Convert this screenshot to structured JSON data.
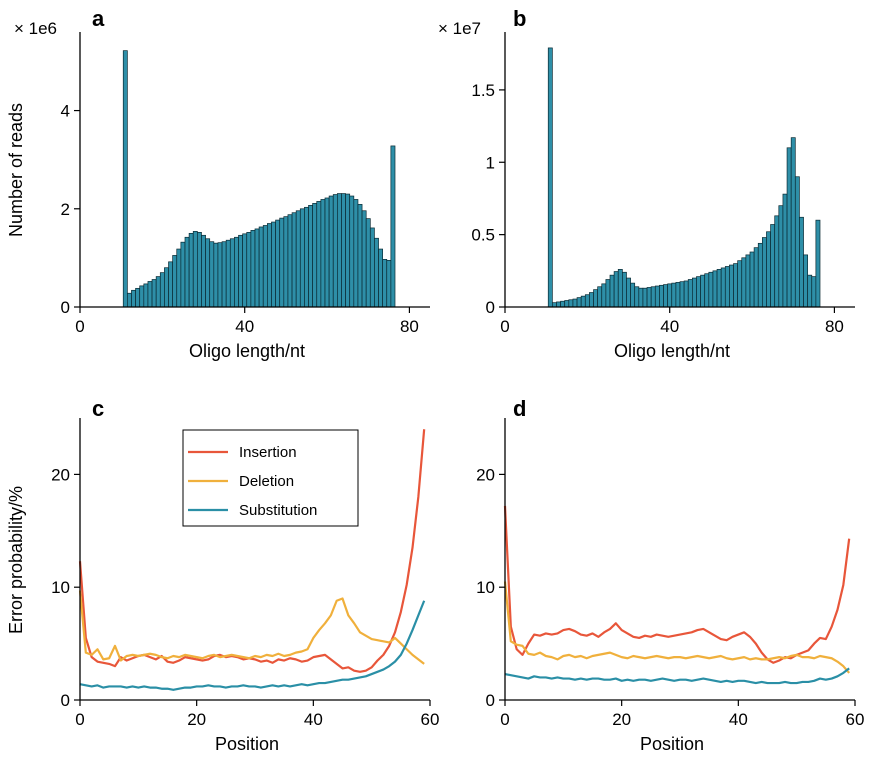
{
  "chart_data": [
    {
      "panel": "a",
      "type": "bar",
      "scale_label": "× 1e6",
      "xlabel": "Oligo length/nt",
      "ylabel": "Number of reads",
      "xlim": [
        0,
        85
      ],
      "ylim": [
        0,
        5.6
      ],
      "xticks": [
        0,
        40,
        80
      ],
      "yticks": [
        0,
        2,
        4
      ],
      "ytick_labels": [
        "0",
        "2",
        "4"
      ],
      "bar_color": "#2e8fa8",
      "x": [
        11,
        12,
        13,
        14,
        15,
        16,
        17,
        18,
        19,
        20,
        21,
        22,
        23,
        24,
        25,
        26,
        27,
        28,
        29,
        30,
        31,
        32,
        33,
        34,
        35,
        36,
        37,
        38,
        39,
        40,
        41,
        42,
        43,
        44,
        45,
        46,
        47,
        48,
        49,
        50,
        51,
        52,
        53,
        54,
        55,
        56,
        57,
        58,
        59,
        60,
        61,
        62,
        63,
        64,
        65,
        66,
        67,
        68,
        69,
        70,
        71,
        72,
        73,
        74,
        75,
        76
      ],
      "values": [
        5.22,
        0.28,
        0.34,
        0.38,
        0.43,
        0.47,
        0.52,
        0.56,
        0.62,
        0.7,
        0.8,
        0.92,
        1.05,
        1.18,
        1.32,
        1.42,
        1.5,
        1.54,
        1.52,
        1.46,
        1.39,
        1.33,
        1.3,
        1.31,
        1.33,
        1.36,
        1.39,
        1.42,
        1.46,
        1.49,
        1.52,
        1.56,
        1.59,
        1.63,
        1.66,
        1.7,
        1.73,
        1.77,
        1.81,
        1.84,
        1.88,
        1.92,
        1.96,
        2.0,
        2.03,
        2.07,
        2.11,
        2.15,
        2.19,
        2.22,
        2.26,
        2.29,
        2.31,
        2.31,
        2.3,
        2.26,
        2.19,
        2.09,
        1.96,
        1.8,
        1.61,
        1.4,
        1.18,
        0.97,
        0.95,
        3.28
      ]
    },
    {
      "panel": "b",
      "type": "bar",
      "scale_label": "× 1e7",
      "xlabel": "Oligo length/nt",
      "ylabel": "",
      "xlim": [
        0,
        85
      ],
      "ylim": [
        0,
        1.9
      ],
      "xticks": [
        0,
        40,
        80
      ],
      "yticks": [
        0,
        0.5,
        1,
        1.5
      ],
      "ytick_labels": [
        "0",
        "0.5",
        "1",
        "1.5"
      ],
      "bar_color": "#2e8fa8",
      "x": [
        11,
        12,
        13,
        14,
        15,
        16,
        17,
        18,
        19,
        20,
        21,
        22,
        23,
        24,
        25,
        26,
        27,
        28,
        29,
        30,
        31,
        32,
        33,
        34,
        35,
        36,
        37,
        38,
        39,
        40,
        41,
        42,
        43,
        44,
        45,
        46,
        47,
        48,
        49,
        50,
        51,
        52,
        53,
        54,
        55,
        56,
        57,
        58,
        59,
        60,
        61,
        62,
        63,
        64,
        65,
        66,
        67,
        68,
        69,
        70,
        71,
        72,
        73,
        74,
        75,
        76
      ],
      "values": [
        1.79,
        0.03,
        0.035,
        0.04,
        0.045,
        0.05,
        0.055,
        0.065,
        0.075,
        0.085,
        0.1,
        0.12,
        0.14,
        0.16,
        0.19,
        0.22,
        0.245,
        0.26,
        0.24,
        0.2,
        0.165,
        0.14,
        0.13,
        0.13,
        0.135,
        0.14,
        0.145,
        0.15,
        0.155,
        0.16,
        0.165,
        0.17,
        0.175,
        0.18,
        0.19,
        0.2,
        0.21,
        0.22,
        0.23,
        0.24,
        0.25,
        0.26,
        0.27,
        0.28,
        0.29,
        0.3,
        0.32,
        0.34,
        0.36,
        0.38,
        0.41,
        0.44,
        0.48,
        0.52,
        0.57,
        0.63,
        0.7,
        0.78,
        1.1,
        1.17,
        0.9,
        0.62,
        0.36,
        0.22,
        0.21,
        0.6
      ]
    },
    {
      "panel": "c",
      "type": "line",
      "xlabel": "Position",
      "ylabel": "Error probability/%",
      "xlim": [
        0,
        60
      ],
      "ylim": [
        0,
        25
      ],
      "xticks": [
        0,
        20,
        40,
        60
      ],
      "yticks": [
        0,
        10,
        20
      ],
      "legend": "upper-center",
      "x": [
        0,
        1,
        2,
        3,
        4,
        5,
        6,
        7,
        8,
        9,
        10,
        11,
        12,
        13,
        14,
        15,
        16,
        17,
        18,
        19,
        20,
        21,
        22,
        23,
        24,
        25,
        26,
        27,
        28,
        29,
        30,
        31,
        32,
        33,
        34,
        35,
        36,
        37,
        38,
        39,
        40,
        41,
        42,
        43,
        44,
        45,
        46,
        47,
        48,
        49,
        50,
        51,
        52,
        53,
        54,
        55,
        56,
        57,
        58,
        59
      ],
      "series": [
        {
          "name": "Insertion",
          "color": "#e8563a",
          "values": [
            12.3,
            5.5,
            3.8,
            3.4,
            3.3,
            3.2,
            3.0,
            3.8,
            3.5,
            3.7,
            3.9,
            4.0,
            3.8,
            3.6,
            3.9,
            3.4,
            3.3,
            3.5,
            3.8,
            3.7,
            3.6,
            3.5,
            3.6,
            3.9,
            4.0,
            3.8,
            3.9,
            3.8,
            3.6,
            3.7,
            3.6,
            3.4,
            3.5,
            3.3,
            3.6,
            3.5,
            3.7,
            3.6,
            3.4,
            3.5,
            3.8,
            3.9,
            4.0,
            3.6,
            3.2,
            2.8,
            2.9,
            2.6,
            2.5,
            2.6,
            2.9,
            3.5,
            4.0,
            4.8,
            6.0,
            7.8,
            10.2,
            13.5,
            18.0,
            24.0
          ]
        },
        {
          "name": "Deletion",
          "color": "#f0b03c",
          "values": [
            9.7,
            4.2,
            4.0,
            4.5,
            3.6,
            3.7,
            4.8,
            3.5,
            3.9,
            4.0,
            3.9,
            4.0,
            4.1,
            4.0,
            3.8,
            3.7,
            3.9,
            3.8,
            4.0,
            3.9,
            3.8,
            3.7,
            3.9,
            4.0,
            3.8,
            3.9,
            4.0,
            3.9,
            3.8,
            3.7,
            3.9,
            3.8,
            4.0,
            3.9,
            4.1,
            3.9,
            4.0,
            4.2,
            4.3,
            4.5,
            5.5,
            6.2,
            6.8,
            7.5,
            8.8,
            9.0,
            7.5,
            6.8,
            6.0,
            5.7,
            5.4,
            5.3,
            5.2,
            5.1,
            5.5,
            5.0,
            4.5,
            4.0,
            3.6,
            3.2
          ]
        },
        {
          "name": "Substitution",
          "color": "#2a8fa6",
          "values": [
            1.4,
            1.3,
            1.2,
            1.3,
            1.1,
            1.2,
            1.2,
            1.2,
            1.1,
            1.2,
            1.1,
            1.2,
            1.1,
            1.1,
            1.0,
            1.0,
            0.9,
            1.0,
            1.1,
            1.1,
            1.2,
            1.2,
            1.3,
            1.2,
            1.2,
            1.1,
            1.2,
            1.2,
            1.3,
            1.2,
            1.2,
            1.1,
            1.2,
            1.3,
            1.2,
            1.3,
            1.2,
            1.3,
            1.4,
            1.3,
            1.4,
            1.5,
            1.5,
            1.6,
            1.7,
            1.8,
            1.8,
            1.9,
            2.0,
            2.1,
            2.3,
            2.5,
            2.7,
            3.0,
            3.4,
            4.0,
            5.0,
            6.2,
            7.5,
            8.8
          ]
        }
      ]
    },
    {
      "panel": "d",
      "type": "line",
      "xlabel": "Position",
      "ylabel": "",
      "xlim": [
        0,
        60
      ],
      "ylim": [
        0,
        25
      ],
      "xticks": [
        0,
        20,
        40,
        60
      ],
      "yticks": [
        0,
        10,
        20
      ],
      "x": [
        0,
        1,
        2,
        3,
        4,
        5,
        6,
        7,
        8,
        9,
        10,
        11,
        12,
        13,
        14,
        15,
        16,
        17,
        18,
        19,
        20,
        21,
        22,
        23,
        24,
        25,
        26,
        27,
        28,
        29,
        30,
        31,
        32,
        33,
        34,
        35,
        36,
        37,
        38,
        39,
        40,
        41,
        42,
        43,
        44,
        45,
        46,
        47,
        48,
        49,
        50,
        51,
        52,
        53,
        54,
        55,
        56,
        57,
        58,
        59
      ],
      "series": [
        {
          "name": "Insertion",
          "color": "#e8563a",
          "values": [
            17.2,
            6.5,
            4.5,
            4.0,
            5.0,
            5.8,
            5.7,
            5.9,
            5.8,
            5.9,
            6.2,
            6.3,
            6.1,
            5.8,
            5.7,
            5.9,
            5.6,
            6.0,
            6.3,
            6.8,
            6.2,
            5.9,
            5.6,
            5.5,
            5.7,
            5.6,
            5.8,
            5.7,
            5.6,
            5.7,
            5.8,
            5.9,
            6.0,
            6.2,
            6.3,
            6.0,
            5.7,
            5.4,
            5.3,
            5.6,
            5.8,
            6.0,
            5.6,
            5.0,
            4.2,
            3.6,
            3.3,
            3.5,
            3.8,
            3.7,
            4.0,
            4.2,
            4.4,
            5.0,
            5.5,
            5.4,
            6.5,
            8.0,
            10.2,
            14.3
          ]
        },
        {
          "name": "Deletion",
          "color": "#f0b03c",
          "values": [
            10.5,
            5.2,
            4.9,
            4.8,
            4.1,
            4.0,
            4.2,
            3.9,
            3.8,
            3.6,
            3.9,
            4.0,
            3.8,
            3.9,
            3.7,
            3.9,
            4.0,
            4.1,
            4.2,
            4.0,
            3.8,
            3.7,
            3.9,
            3.8,
            3.7,
            3.8,
            3.9,
            3.8,
            3.7,
            3.8,
            3.8,
            3.7,
            3.8,
            3.9,
            3.8,
            3.7,
            3.8,
            3.9,
            3.7,
            3.6,
            3.7,
            3.8,
            3.6,
            3.7,
            3.6,
            3.6,
            3.7,
            3.8,
            3.7,
            3.9,
            4.0,
            3.8,
            3.8,
            3.7,
            3.9,
            3.8,
            3.7,
            3.4,
            3.0,
            2.4
          ]
        },
        {
          "name": "Substitution",
          "color": "#2a8fa6",
          "values": [
            2.3,
            2.2,
            2.1,
            2.0,
            1.9,
            2.1,
            2.0,
            2.0,
            1.9,
            2.0,
            1.9,
            1.9,
            1.8,
            1.9,
            1.8,
            1.9,
            1.9,
            1.8,
            1.8,
            1.9,
            1.7,
            1.8,
            1.7,
            1.8,
            1.8,
            1.7,
            1.8,
            1.9,
            1.8,
            1.7,
            1.8,
            1.8,
            1.7,
            1.8,
            1.9,
            1.8,
            1.7,
            1.6,
            1.7,
            1.6,
            1.7,
            1.7,
            1.6,
            1.5,
            1.6,
            1.5,
            1.5,
            1.5,
            1.6,
            1.5,
            1.5,
            1.6,
            1.6,
            1.7,
            1.9,
            1.8,
            1.9,
            2.1,
            2.4,
            2.8
          ]
        }
      ]
    }
  ]
}
